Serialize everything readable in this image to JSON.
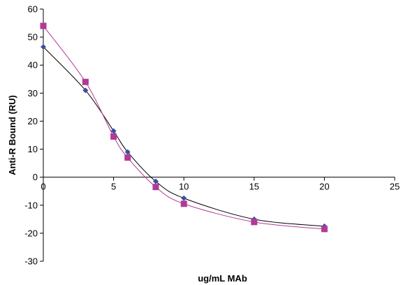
{
  "chart_data": {
    "type": "scatter",
    "title": "",
    "xlabel": "ug/mL MAb",
    "ylabel": "Anti-R Bound (RU)",
    "xlim": [
      0,
      25
    ],
    "ylim": [
      -30,
      60
    ],
    "x_ticks": [
      0,
      5,
      10,
      15,
      20,
      25
    ],
    "y_ticks": [
      -30,
      -20,
      -10,
      0,
      10,
      20,
      30,
      40,
      50,
      60
    ],
    "x_tick_labels": [
      "0",
      "5",
      "10",
      "15",
      "20",
      "25"
    ],
    "y_tick_labels": [
      "-30",
      "-20",
      "-10",
      "0",
      "10",
      "20",
      "30",
      "40",
      "50",
      "60"
    ],
    "grid": false,
    "legend": "none",
    "series": [
      {
        "marker": "diamond",
        "marker_color": "#3b4fa0",
        "line_color": "#000000",
        "smooth": true,
        "x": [
          0,
          3,
          5,
          6,
          8,
          10,
          15,
          20
        ],
        "y": [
          46.5,
          31,
          16.5,
          9,
          -1.5,
          -7.5,
          -15,
          -17.5
        ]
      },
      {
        "marker": "square",
        "marker_color": "#b23a96",
        "line_color": "#b23a96",
        "smooth": true,
        "x": [
          0,
          3,
          5,
          6,
          8,
          10,
          15,
          20
        ],
        "y": [
          54,
          34,
          14.5,
          7,
          -3.5,
          -9.5,
          -16,
          -18.5
        ]
      }
    ]
  }
}
